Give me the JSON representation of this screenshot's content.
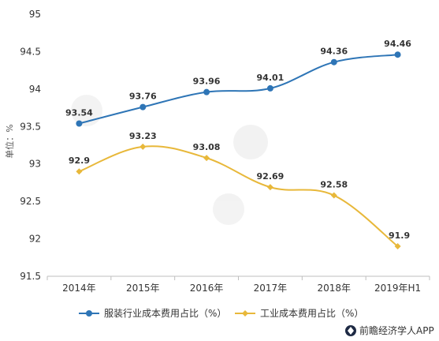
{
  "chart_data": {
    "type": "line",
    "categories": [
      "2014年",
      "2015年",
      "2016年",
      "2017年",
      "2018年",
      "2019年H1"
    ],
    "ylabel": "单位：%",
    "ylim": [
      91.5,
      95
    ],
    "yticks": [
      91.5,
      92,
      92.5,
      93,
      93.5,
      94,
      94.5,
      95
    ],
    "ytick_labels": [
      "91.5",
      "92",
      "92.5",
      "93",
      "93.5",
      "94",
      "94.5",
      "95"
    ],
    "grid": false,
    "legend_position": "bottom",
    "series": [
      {
        "name": "服装行业成本费用占比（%）",
        "color": "#2e75b6",
        "marker": "circle",
        "values": [
          93.54,
          93.76,
          93.96,
          94.01,
          94.36,
          94.46
        ],
        "labels": [
          "93.54",
          "93.76",
          "93.96",
          "94.01",
          "94.36",
          "94.46"
        ]
      },
      {
        "name": "工业成本费用占比（%）",
        "color": "#e8b83a",
        "marker": "diamond",
        "values": [
          92.9,
          93.23,
          93.08,
          92.69,
          92.58,
          91.9
        ],
        "labels": [
          "92.9",
          "93.23",
          "93.08",
          "92.69",
          "92.58",
          "91.9"
        ]
      }
    ]
  },
  "brand": {
    "text": "前瞻经济学人APP",
    "icon": "qianzhan-logo-icon"
  }
}
